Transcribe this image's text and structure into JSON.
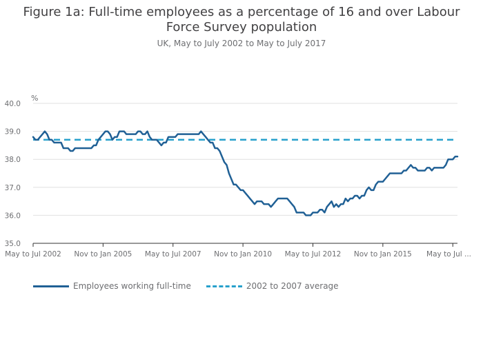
{
  "title_line1": "Figure 1a: Full-time employees as a percentage of 16 and over Labour",
  "title_line2": "Force Survey population",
  "subtitle": "UK, May to July 2002 to May to July 2017",
  "colors": {
    "series": "#206095",
    "average": "#27a0cc",
    "grid": "#e0e0e0"
  },
  "chart_data": {
    "type": "line",
    "title": "Figure 1a: Full-time employees as a percentage of 16 and over Labour Force Survey population",
    "subtitle": "UK, May to July 2002 to May to July 2017",
    "ylabel": "%",
    "xlabel": "",
    "ylim": [
      35.0,
      40.0
    ],
    "y_ticks": [
      "35.0",
      "36.0",
      "37.0",
      "38.0",
      "39.0",
      "40.0"
    ],
    "x_ticks": [
      "May to Jul 2002",
      "Nov to Jan 2005",
      "May to Jul 2007",
      "Nov to Jan 2010",
      "May to Jul 2012",
      "Nov to Jan 2015",
      "May to Jul ..."
    ],
    "x_tick_positions": [
      0,
      30,
      60,
      90,
      120,
      150,
      180
    ],
    "grid": true,
    "legend_position": "bottom",
    "series": [
      {
        "name": "Employees working full-time",
        "style": "solid",
        "x_start": "May to Jul 2002",
        "period": "rolling quarter, monthly",
        "values": [
          38.8,
          38.7,
          38.7,
          38.8,
          38.9,
          39.0,
          38.9,
          38.7,
          38.7,
          38.6,
          38.6,
          38.6,
          38.6,
          38.4,
          38.4,
          38.4,
          38.3,
          38.3,
          38.4,
          38.4,
          38.4,
          38.4,
          38.4,
          38.4,
          38.4,
          38.4,
          38.5,
          38.5,
          38.7,
          38.8,
          38.9,
          39.0,
          39.0,
          38.9,
          38.7,
          38.8,
          38.8,
          39.0,
          39.0,
          39.0,
          38.9,
          38.9,
          38.9,
          38.9,
          38.9,
          39.0,
          39.0,
          38.9,
          38.9,
          39.0,
          38.8,
          38.7,
          38.7,
          38.7,
          38.6,
          38.5,
          38.6,
          38.6,
          38.8,
          38.8,
          38.8,
          38.8,
          38.9,
          38.9,
          38.9,
          38.9,
          38.9,
          38.9,
          38.9,
          38.9,
          38.9,
          38.9,
          39.0,
          38.9,
          38.8,
          38.7,
          38.6,
          38.6,
          38.4,
          38.4,
          38.3,
          38.1,
          37.9,
          37.8,
          37.5,
          37.3,
          37.1,
          37.1,
          37.0,
          36.9,
          36.9,
          36.8,
          36.7,
          36.6,
          36.5,
          36.4,
          36.5,
          36.5,
          36.5,
          36.4,
          36.4,
          36.4,
          36.3,
          36.4,
          36.5,
          36.6,
          36.6,
          36.6,
          36.6,
          36.6,
          36.5,
          36.4,
          36.3,
          36.1,
          36.1,
          36.1,
          36.1,
          36.0,
          36.0,
          36.0,
          36.1,
          36.1,
          36.1,
          36.2,
          36.2,
          36.1,
          36.3,
          36.4,
          36.5,
          36.3,
          36.4,
          36.3,
          36.4,
          36.4,
          36.6,
          36.5,
          36.6,
          36.6,
          36.7,
          36.7,
          36.6,
          36.7,
          36.7,
          36.9,
          37.0,
          36.9,
          36.9,
          37.1,
          37.2,
          37.2,
          37.2,
          37.3,
          37.4,
          37.5,
          37.5,
          37.5,
          37.5,
          37.5,
          37.5,
          37.6,
          37.6,
          37.7,
          37.8,
          37.7,
          37.7,
          37.6,
          37.6,
          37.6,
          37.6,
          37.7,
          37.7,
          37.6,
          37.7,
          37.7,
          37.7,
          37.7,
          37.7,
          37.8,
          38.0,
          38.0,
          38.0,
          38.1,
          38.1
        ]
      },
      {
        "name": "2002 to 2007 average",
        "style": "dashed",
        "constant_value": 38.7
      }
    ]
  },
  "legend": {
    "series_label": "Employees working full-time",
    "average_label": "2002 to 2007 average"
  }
}
